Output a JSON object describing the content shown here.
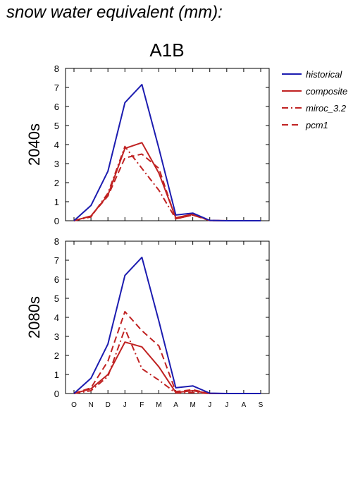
{
  "heading": "snow water equivalent (mm):",
  "colors": {
    "historical": "#1c1cb0",
    "scenario": "#c02222"
  },
  "chart_data": [
    {
      "type": "line",
      "title": "A1B",
      "ylabel": "2040s",
      "xlabel": "",
      "categories": [
        "O",
        "N",
        "D",
        "J",
        "F",
        "M",
        "A",
        "M",
        "J",
        "J",
        "A",
        "S"
      ],
      "ylim": [
        0,
        8
      ],
      "yticks": [
        "0",
        "1",
        "2",
        "3",
        "4",
        "5",
        "6",
        "7",
        "8"
      ],
      "legend_position": "right",
      "series": [
        {
          "name": "historical",
          "style": "solid",
          "color": "#1c1cb0",
          "values": [
            0.0,
            0.8,
            2.6,
            6.2,
            7.15,
            3.8,
            0.3,
            0.4,
            0.02,
            0.0,
            0.0,
            0.0
          ]
        },
        {
          "name": "composite",
          "style": "solid",
          "color": "#c02222",
          "values": [
            0.0,
            0.25,
            1.35,
            3.8,
            4.1,
            2.5,
            0.15,
            0.35,
            0.01,
            0.0,
            0.0,
            0.0
          ]
        },
        {
          "name": "miroc_3.2",
          "style": "dashdot",
          "color": "#c02222",
          "values": [
            0.0,
            0.2,
            1.45,
            3.9,
            2.75,
            1.6,
            0.1,
            0.3,
            0.01,
            0.0,
            0.0,
            0.0
          ]
        },
        {
          "name": "pcm1",
          "style": "dash",
          "color": "#c02222",
          "values": [
            0.0,
            0.25,
            1.3,
            3.3,
            3.5,
            2.75,
            0.1,
            0.3,
            0.01,
            0.0,
            0.0,
            0.0
          ]
        }
      ]
    },
    {
      "type": "line",
      "title": "",
      "ylabel": "2080s",
      "xlabel": "",
      "categories": [
        "O",
        "N",
        "D",
        "J",
        "F",
        "M",
        "A",
        "M",
        "J",
        "J",
        "A",
        "S"
      ],
      "ylim": [
        0,
        8
      ],
      "yticks": [
        "0",
        "1",
        "2",
        "3",
        "4",
        "5",
        "6",
        "7",
        "8"
      ],
      "series": [
        {
          "name": "historical",
          "style": "solid",
          "color": "#1c1cb0",
          "values": [
            0.0,
            0.8,
            2.6,
            6.2,
            7.15,
            3.8,
            0.3,
            0.4,
            0.02,
            0.0,
            0.0,
            0.0
          ]
        },
        {
          "name": "composite",
          "style": "solid",
          "color": "#c02222",
          "values": [
            0.0,
            0.25,
            1.0,
            2.7,
            2.45,
            1.4,
            0.05,
            0.15,
            0.0,
            0.0,
            0.0,
            0.0
          ]
        },
        {
          "name": "miroc_3.2",
          "style": "dashdot",
          "color": "#c02222",
          "values": [
            0.0,
            0.15,
            0.9,
            3.4,
            1.3,
            0.7,
            0.03,
            0.05,
            0.0,
            0.0,
            0.0,
            0.0
          ]
        },
        {
          "name": "pcm1",
          "style": "dash",
          "color": "#c02222",
          "values": [
            0.0,
            0.3,
            1.7,
            4.3,
            3.3,
            2.5,
            0.1,
            0.2,
            0.0,
            0.0,
            0.0,
            0.0
          ]
        }
      ]
    }
  ]
}
